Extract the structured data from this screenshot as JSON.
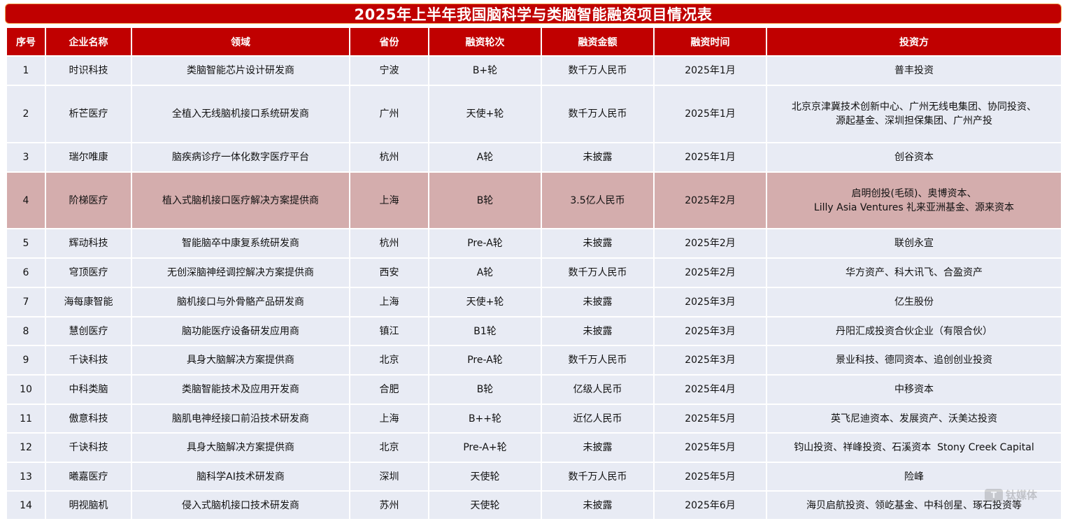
{
  "title": "2025年上半年我国脑科学与类脑智能融资项目情况表",
  "columns": [
    "序号",
    "企业名称",
    "领域",
    "省份",
    "融资轮次",
    "融资金额",
    "融资时间",
    "投资方"
  ],
  "rows": [
    {
      "no": "1",
      "company": "时识科技",
      "field": "类脑智能芯片设计研发商",
      "province": "宁波",
      "round": "B+轮",
      "amount": "数千万人民币",
      "date": "2025年1月",
      "investors": [
        "普丰投资"
      ]
    },
    {
      "no": "2",
      "company": "析芒医疗",
      "field": "全植入无线脑机接口系统研发商",
      "province": "广州",
      "round": "天使+轮",
      "amount": "数千万人民币",
      "date": "2025年1月",
      "investors": [
        "北京京津冀技术创新中心、广州无线电集团、协同投资、",
        "源起基金、深圳担保集团、广州产投"
      ]
    },
    {
      "no": "3",
      "company": "瑞尔唯康",
      "field": "脑疾病诊疗一体化数字医疗平台",
      "province": "杭州",
      "round": "A轮",
      "amount": "未披露",
      "date": "2025年1月",
      "investors": [
        "创谷资本"
      ]
    },
    {
      "no": "4",
      "company": "阶梯医疗",
      "field": "植入式脑机接口医疗解决方案提供商",
      "province": "上海",
      "round": "B轮",
      "amount": "3.5亿人民币",
      "date": "2025年2月",
      "investors": [
        "启明创投(毛硕)、奥博资本、",
        "Lilly Asia Ventures 礼来亚洲基金、源来资本"
      ],
      "highlighted": true
    },
    {
      "no": "5",
      "company": "辉动科技",
      "field": "智能脑卒中康复系统研发商",
      "province": "杭州",
      "round": "Pre-A轮",
      "amount": "未披露",
      "date": "2025年2月",
      "investors": [
        "联创永宣"
      ]
    },
    {
      "no": "6",
      "company": "穹顶医疗",
      "field": "无创深脑神经调控解决方案提供商",
      "province": "西安",
      "round": "A轮",
      "amount": "数千万人民币",
      "date": "2025年2月",
      "investors": [
        "华方资产、科大讯飞、合盈资产"
      ]
    },
    {
      "no": "7",
      "company": "海每康智能",
      "field": "脑机接口与外骨骼产品研发商",
      "province": "上海",
      "round": "天使+轮",
      "amount": "未披露",
      "date": "2025年3月",
      "investors": [
        "亿生股份"
      ]
    },
    {
      "no": "8",
      "company": "慧创医疗",
      "field": "脑功能医疗设备研发应用商",
      "province": "镇江",
      "round": "B1轮",
      "amount": "未披露",
      "date": "2025年3月",
      "investors": [
        "丹阳汇成投资合伙企业（有限合伙）"
      ]
    },
    {
      "no": "9",
      "company": "千诀科技",
      "field": "具身大脑解决方案提供商",
      "province": "北京",
      "round": "Pre-A轮",
      "amount": "数千万人民币",
      "date": "2025年3月",
      "investors": [
        "景业科技、德同资本、追创创业投资"
      ]
    },
    {
      "no": "10",
      "company": "中科类脑",
      "field": "类脑智能技术及应用开发商",
      "province": "合肥",
      "round": "B轮",
      "amount": "亿级人民币",
      "date": "2025年4月",
      "investors": [
        "中移资本"
      ]
    },
    {
      "no": "11",
      "company": "傲意科技",
      "field": "脑肌电神经接口前沿技术研发商",
      "province": "上海",
      "round": "B++轮",
      "amount": "近亿人民币",
      "date": "2025年5月",
      "investors": [
        "英飞尼迪资本、发展资产、沃美达投资"
      ]
    },
    {
      "no": "12",
      "company": "千诀科技",
      "field": "具身大脑解决方案提供商",
      "province": "北京",
      "round": "Pre-A+轮",
      "amount": "未披露",
      "date": "2025年5月",
      "investors": [
        "钧山投资、祥峰投资、石溪资本  Stony Creek Capital"
      ]
    },
    {
      "no": "13",
      "company": "曦嘉医疗",
      "field": "脑科学AI技术研发商",
      "province": "深圳",
      "round": "天使轮",
      "amount": "数千万人民币",
      "date": "2025年5月",
      "investors": [
        "险峰"
      ]
    },
    {
      "no": "14",
      "company": "明视脑机",
      "field": "侵入式脑机接口技术研发商",
      "province": "苏州",
      "round": "天使轮",
      "amount": "未披露",
      "date": "2025年6月",
      "investors": [
        "海贝启航投资、领屹基金、中科创星、琢石投资等"
      ]
    }
  ],
  "watermark": {
    "logo": "T",
    "text": "钛媒体"
  },
  "colors": {
    "header_bg": "#c00000",
    "row_bg": "#e8ebf4",
    "highlight_bg": "#d4adad",
    "title_border": "#f2a654"
  }
}
